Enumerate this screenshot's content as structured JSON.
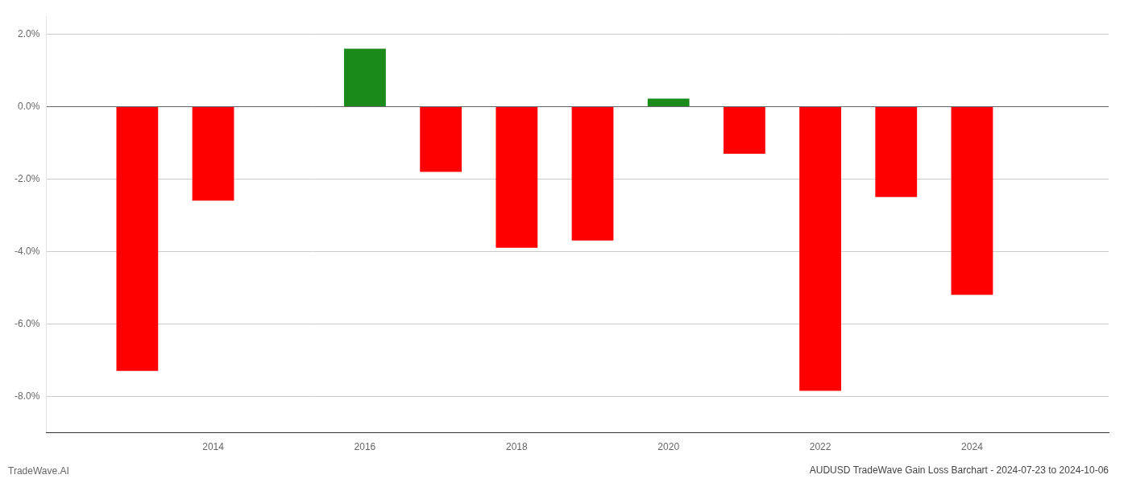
{
  "chart_data": {
    "type": "bar",
    "title": "AUDUSD TradeWave Gain Loss Barchart - 2024-07-23 to 2024-10-06",
    "annotations": [
      "TradeWave.AI"
    ],
    "x": [
      2013,
      2014,
      2016,
      2017,
      2018,
      2019,
      2020,
      2021,
      2022,
      2023,
      2024
    ],
    "values": [
      -7.3,
      -2.6,
      1.6,
      -1.8,
      -3.9,
      -3.7,
      0.22,
      -1.3,
      -7.85,
      -2.5,
      -5.2
    ],
    "colors": [
      "#ff0000",
      "#ff0000",
      "#1a8a1a",
      "#ff0000",
      "#ff0000",
      "#ff0000",
      "#1a8a1a",
      "#ff0000",
      "#ff0000",
      "#ff0000",
      "#ff0000"
    ],
    "xlim": [
      2011.8,
      2025.8
    ],
    "xticks": [
      2014,
      2016,
      2018,
      2020,
      2022,
      2024
    ],
    "ylim": [
      -9.0,
      2.5
    ],
    "yticks": [
      {
        "value": -8.0,
        "label": "-8.0%"
      },
      {
        "value": -6.0,
        "label": "-6.0%"
      },
      {
        "value": -4.0,
        "label": "-4.0%"
      },
      {
        "value": -2.0,
        "label": "-2.0%"
      },
      {
        "value": 0.0,
        "label": "0.0%"
      },
      {
        "value": 2.0,
        "label": "2.0%"
      }
    ],
    "grid": true
  }
}
